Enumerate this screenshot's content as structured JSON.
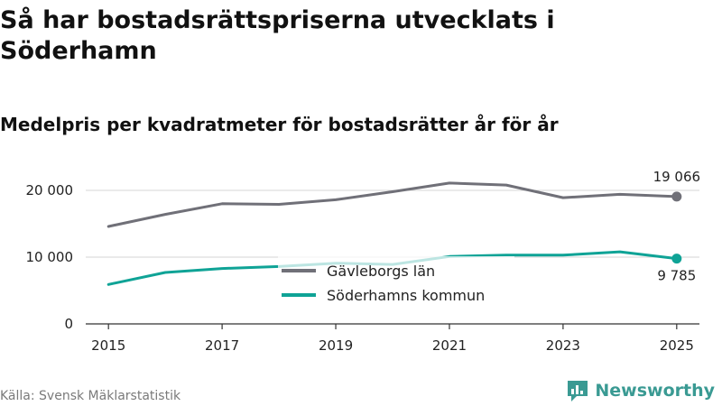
{
  "title": "Så har bostadsrättspriserna utvecklats i Söderhamn",
  "subtitle": "Medelpris per kvadratmeter för bostadsrätter år för år",
  "source": "Källa: Svensk Mäklarstatistik",
  "brand": {
    "name": "Newsworthy",
    "icon": "newsworthy-logo-icon",
    "color": "#3a9a93"
  },
  "chart_data": {
    "type": "line",
    "x": [
      2015,
      2016,
      2017,
      2018,
      2019,
      2020,
      2021,
      2022,
      2023,
      2024,
      2025
    ],
    "x_ticks": [
      "2015",
      "2017",
      "2019",
      "2021",
      "2023",
      "2025"
    ],
    "y_ticks": [
      0,
      10000,
      20000
    ],
    "y_tick_labels": [
      "0",
      "10 000",
      "20 000"
    ],
    "ylim": [
      0,
      20000
    ],
    "xlim": [
      2014.6,
      2025.4
    ],
    "grid": true,
    "legend_position": "center",
    "series": [
      {
        "name": "Gävleborgs län",
        "color": "#707078",
        "values": [
          14600,
          16400,
          18000,
          17900,
          18600,
          19800,
          21100,
          20800,
          18900,
          19400,
          19066
        ],
        "end_label": "19 066"
      },
      {
        "name": "Söderhamns kommun",
        "color": "#0fa396",
        "values": [
          5900,
          7700,
          8300,
          8600,
          9100,
          8900,
          10100,
          10300,
          10300,
          10800,
          9785
        ],
        "end_label": "9 785"
      }
    ]
  }
}
